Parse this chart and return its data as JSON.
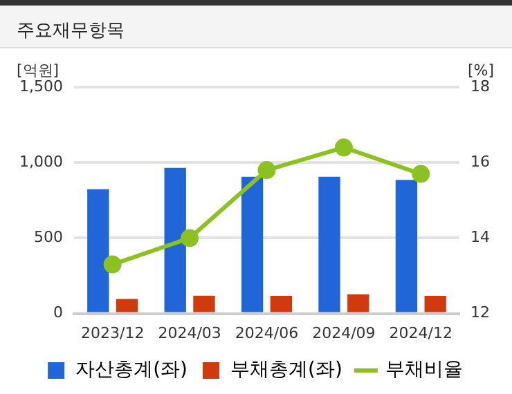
{
  "chart_data": {
    "type": "bar",
    "title": "주요재무항목",
    "ylabel": "[억원]",
    "y2label": "[%]",
    "categories": [
      "2023/12",
      "2024/03",
      "2024/06",
      "2024/09",
      "2024/12"
    ],
    "series": [
      {
        "name": "자산총계(좌)",
        "color": "#2166d9",
        "values": [
          824,
          966,
          906,
          906,
          885
        ]
      },
      {
        "name": "부채총계(좌)",
        "color": "#d13a0c",
        "values": [
          97,
          118,
          117,
          127,
          117
        ]
      },
      {
        "name": "부채비율",
        "type": "line",
        "axis": "y2",
        "color": "#8cc21f",
        "values": [
          13.3,
          14.0,
          15.8,
          16.4,
          15.7
        ]
      }
    ],
    "ylim": [
      0,
      1500
    ],
    "yticks": [
      0,
      {
        "value": 500,
        "label": "500"
      },
      {
        "value": 1000,
        "label": "1,000"
      },
      {
        "value": 1500,
        "label": "1,500"
      }
    ],
    "y2lim": [
      12,
      18
    ],
    "y2ticks": [
      12,
      14,
      16,
      18
    ],
    "grid": "y",
    "legend": "bottom",
    "marker": "circle"
  }
}
